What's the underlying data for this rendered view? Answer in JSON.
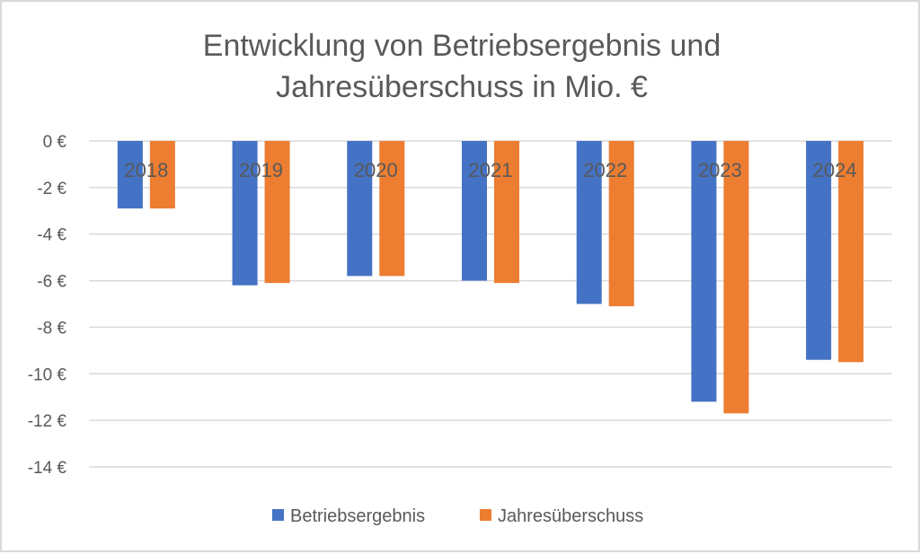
{
  "chart_data": {
    "type": "bar",
    "title": "Entwicklung von Betriebsergebnis und Jahresüberschuss in Mio. €",
    "title_lines": [
      "Entwicklung von Betriebsergebnis und",
      "Jahresüberschuss in Mio. €"
    ],
    "xlabel": "",
    "ylabel": "",
    "categories": [
      "2018",
      "2019",
      "2020",
      "2021",
      "2022",
      "2023",
      "2024"
    ],
    "series": [
      {
        "name": "Betriebsergebnis",
        "color": "#4472c4",
        "values": [
          -2.9,
          -6.2,
          -5.8,
          -6.0,
          -7.0,
          -11.2,
          -9.4
        ]
      },
      {
        "name": "Jahresüberschuss",
        "color": "#ed7d31",
        "values": [
          -2.9,
          -6.1,
          -5.8,
          -6.1,
          -7.1,
          -11.7,
          -9.5
        ]
      }
    ],
    "ylim": [
      -14,
      0
    ],
    "yticks": [
      0,
      -2,
      -4,
      -6,
      -8,
      -10,
      -12,
      -14
    ],
    "ytick_labels": [
      "0 €",
      "-2 €",
      "-4 €",
      "-6 €",
      "-8 €",
      "-10 €",
      "-12 €",
      "-14 €"
    ],
    "grid": true,
    "legend": "bottom",
    "category_labels_position": "top-inside"
  }
}
